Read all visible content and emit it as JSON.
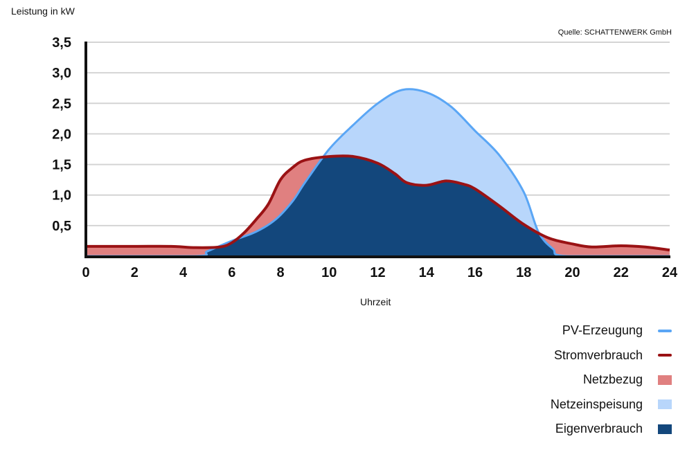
{
  "chart_data": {
    "type": "area",
    "ylabel": "Leistung in kW",
    "xlabel": "Uhrzeit",
    "source": "Quelle: SCHATTENWERK GmbH",
    "xlim": [
      0,
      24
    ],
    "ylim": [
      0,
      3.5
    ],
    "x_ticks": [
      "0",
      "2",
      "4",
      "6",
      "8",
      "10",
      "12",
      "14",
      "16",
      "18",
      "20",
      "22",
      "24"
    ],
    "y_ticks": [
      "0,5",
      "1,0",
      "1,5",
      "2,0",
      "2,5",
      "3,0",
      "3,5"
    ],
    "grid": true,
    "legend_position": "bottom-right",
    "series": [
      {
        "name": "PV-Erzeugung",
        "kind": "line",
        "color": "#5aa6f5",
        "x": [
          0,
          4.5,
          5,
          6,
          7,
          7.8,
          8.5,
          9,
          10,
          11,
          12,
          13,
          14,
          15,
          16,
          17,
          18,
          18.6,
          19.2,
          19.8,
          24
        ],
        "y": [
          0,
          0,
          0.08,
          0.25,
          0.4,
          0.6,
          0.9,
          1.2,
          1.75,
          2.15,
          2.5,
          2.72,
          2.68,
          2.45,
          2.05,
          1.65,
          1.05,
          0.4,
          0.12,
          0,
          0
        ]
      },
      {
        "name": "Stromverbrauch",
        "kind": "line",
        "color": "#9a1214",
        "x": [
          0,
          2,
          3.5,
          4.5,
          5.5,
          6,
          6.5,
          7,
          7.5,
          8,
          8.5,
          9,
          10,
          11,
          12,
          12.7,
          13.2,
          14,
          14.8,
          15.5,
          16,
          17,
          18,
          19,
          20,
          20.8,
          22,
          23,
          24
        ],
        "y": [
          0.16,
          0.16,
          0.16,
          0.14,
          0.15,
          0.22,
          0.38,
          0.6,
          0.85,
          1.25,
          1.45,
          1.57,
          1.63,
          1.63,
          1.52,
          1.35,
          1.2,
          1.16,
          1.23,
          1.18,
          1.1,
          0.82,
          0.52,
          0.3,
          0.2,
          0.15,
          0.17,
          0.15,
          0.1
        ]
      },
      {
        "name": "Netzbezug",
        "kind": "area",
        "color": "#e08080"
      },
      {
        "name": "Netzeinspeisung",
        "kind": "area",
        "color": "#b8d6fb"
      },
      {
        "name": "Eigenverbrauch",
        "kind": "area",
        "color": "#13477c"
      }
    ]
  }
}
